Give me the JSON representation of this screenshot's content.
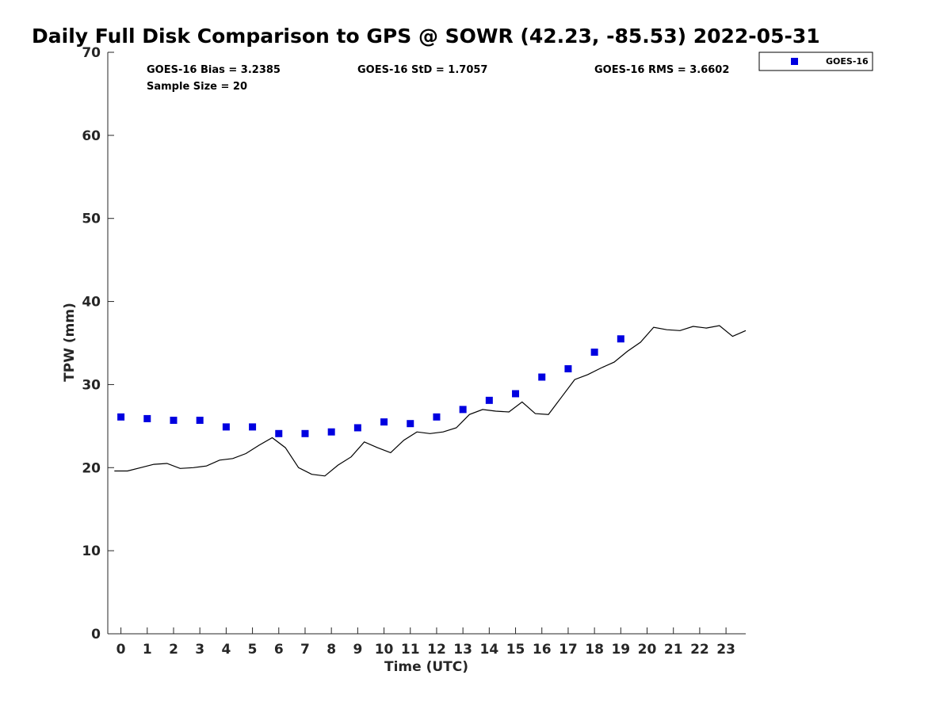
{
  "chart_data": {
    "type": "scatter",
    "title": "Daily Full Disk Comparison to GPS @ SOWR (42.23, -85.53) 2022-05-31",
    "xlabel": "Time (UTC)",
    "ylabel": "TPW (mm)",
    "xlim": [
      -0.5,
      23.75
    ],
    "ylim": [
      0,
      70
    ],
    "xticks": [
      0,
      1,
      2,
      3,
      4,
      5,
      6,
      7,
      8,
      9,
      10,
      11,
      12,
      13,
      14,
      15,
      16,
      17,
      18,
      19,
      20,
      21,
      22,
      23
    ],
    "yticks": [
      0,
      10,
      20,
      30,
      40,
      50,
      60,
      70
    ],
    "grid": false,
    "legend_position": "top-right outside",
    "stats": [
      "GOES-16 Bias = 3.2385",
      "GOES-16 StD = 1.7057",
      "GOES-16 RMS = 3.6602",
      "Sample Size = 20"
    ],
    "series": [
      {
        "name": "GOES-16",
        "kind": "markers",
        "marker": "square",
        "color": "#0000e0",
        "x": [
          0,
          1,
          2,
          3,
          4,
          5,
          6,
          7,
          8,
          9,
          10,
          11,
          12,
          13,
          14,
          15,
          16,
          17,
          18,
          19
        ],
        "y": [
          26.1,
          25.9,
          25.7,
          25.7,
          24.9,
          24.9,
          24.1,
          24.1,
          24.3,
          24.8,
          25.5,
          25.3,
          26.1,
          27.0,
          28.1,
          28.9,
          30.9,
          31.9,
          33.9,
          35.5
        ]
      },
      {
        "kind": "line",
        "color": "#000000",
        "x": [
          -0.25,
          0.25,
          0.75,
          1.25,
          1.75,
          2.25,
          2.75,
          3.25,
          3.75,
          4.25,
          4.75,
          5.25,
          5.75,
          6.25,
          6.75,
          7.25,
          7.75,
          8.25,
          8.75,
          9.25,
          9.75,
          10.25,
          10.75,
          11.25,
          11.75,
          12.25,
          12.75,
          13.25,
          13.75,
          14.25,
          14.75,
          15.25,
          15.75,
          16.25,
          16.75,
          17.25,
          17.75,
          18.25,
          18.75,
          19.25,
          19.75,
          20.25,
          20.75,
          21.25,
          21.75,
          22.25,
          22.75,
          23.25,
          23.75
        ],
        "y": [
          19.6,
          19.6,
          20.0,
          20.4,
          20.5,
          19.9,
          20.0,
          20.2,
          20.9,
          21.1,
          21.7,
          22.7,
          23.6,
          22.4,
          20.0,
          19.2,
          19.0,
          20.3,
          21.3,
          23.1,
          22.4,
          21.8,
          23.3,
          24.3,
          24.1,
          24.3,
          24.8,
          26.4,
          27.0,
          26.8,
          26.7,
          27.9,
          26.5,
          26.4,
          28.5,
          30.6,
          31.2,
          32.0,
          32.7,
          34.0,
          35.1,
          36.9,
          36.6,
          36.5,
          37.0,
          36.8,
          37.1,
          35.8,
          36.5
        ]
      }
    ]
  }
}
